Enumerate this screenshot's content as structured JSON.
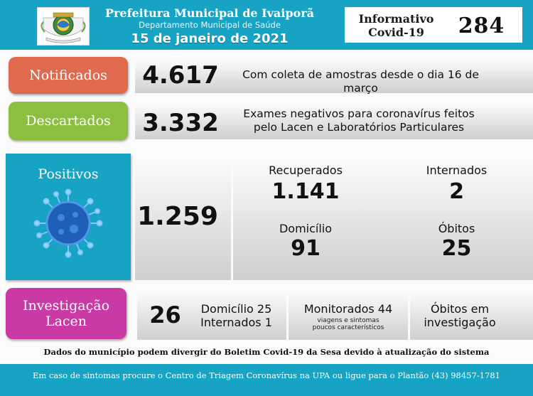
{
  "header": {
    "title": "Prefeitura Municipal de Ivaiporã",
    "subtitle": "Departamento Municipal de Saúde",
    "date": "15 de janeiro de 2021",
    "bulletin_label_line1": "Informativo",
    "bulletin_label_line2": "Covid-19",
    "bulletin_number": "284",
    "logo_icon": "municipal-coat-of-arms"
  },
  "notificados": {
    "label": "Notificados",
    "value": "4.617",
    "description": "Com coleta de amostras desde o dia 16 de março"
  },
  "descartados": {
    "label": "Descartados",
    "value": "3.332",
    "description_line1": "Exames negativos para coronavírus feitos",
    "description_line2": "pelo Lacen e Laboratórios Particulares"
  },
  "positivos": {
    "label": "Positivos",
    "value": "1.259",
    "icon": "coronavirus-icon",
    "recuperados_label": "Recuperados",
    "recuperados_value": "1.141",
    "internados_label": "Internados",
    "internados_value": "2",
    "domicilio_label": "Domicílio",
    "domicilio_value": "91",
    "obitos_label": "Óbitos",
    "obitos_value": "25"
  },
  "investigacao": {
    "label_line1": "Investigação",
    "label_line2": "Lacen",
    "value": "26",
    "domicilio": "Domicílio 25",
    "internados": "Internados 1",
    "monitorados": "Monitorados 44",
    "monitorados_note_line1": "viagens e sintomas",
    "monitorados_note_line2": "poucos característicos",
    "obitos_line1": "Óbitos em",
    "obitos_line2": "investigação"
  },
  "disclaimer": "Dados do município podem divergir do Boletim Covid-19 da Sesa devido à atualização do sistema",
  "footer": "Em caso de sintomas procure o Centro de Triagem Coronavírus na UPA ou ligue para o Plantão (43) 98457-1781",
  "colors": {
    "header_cyan": "#16a3c4",
    "notificados": "#e06a4e",
    "descartados": "#8cbf3f",
    "positivos": "#16a3c4",
    "investigacao": "#c93aa5"
  }
}
